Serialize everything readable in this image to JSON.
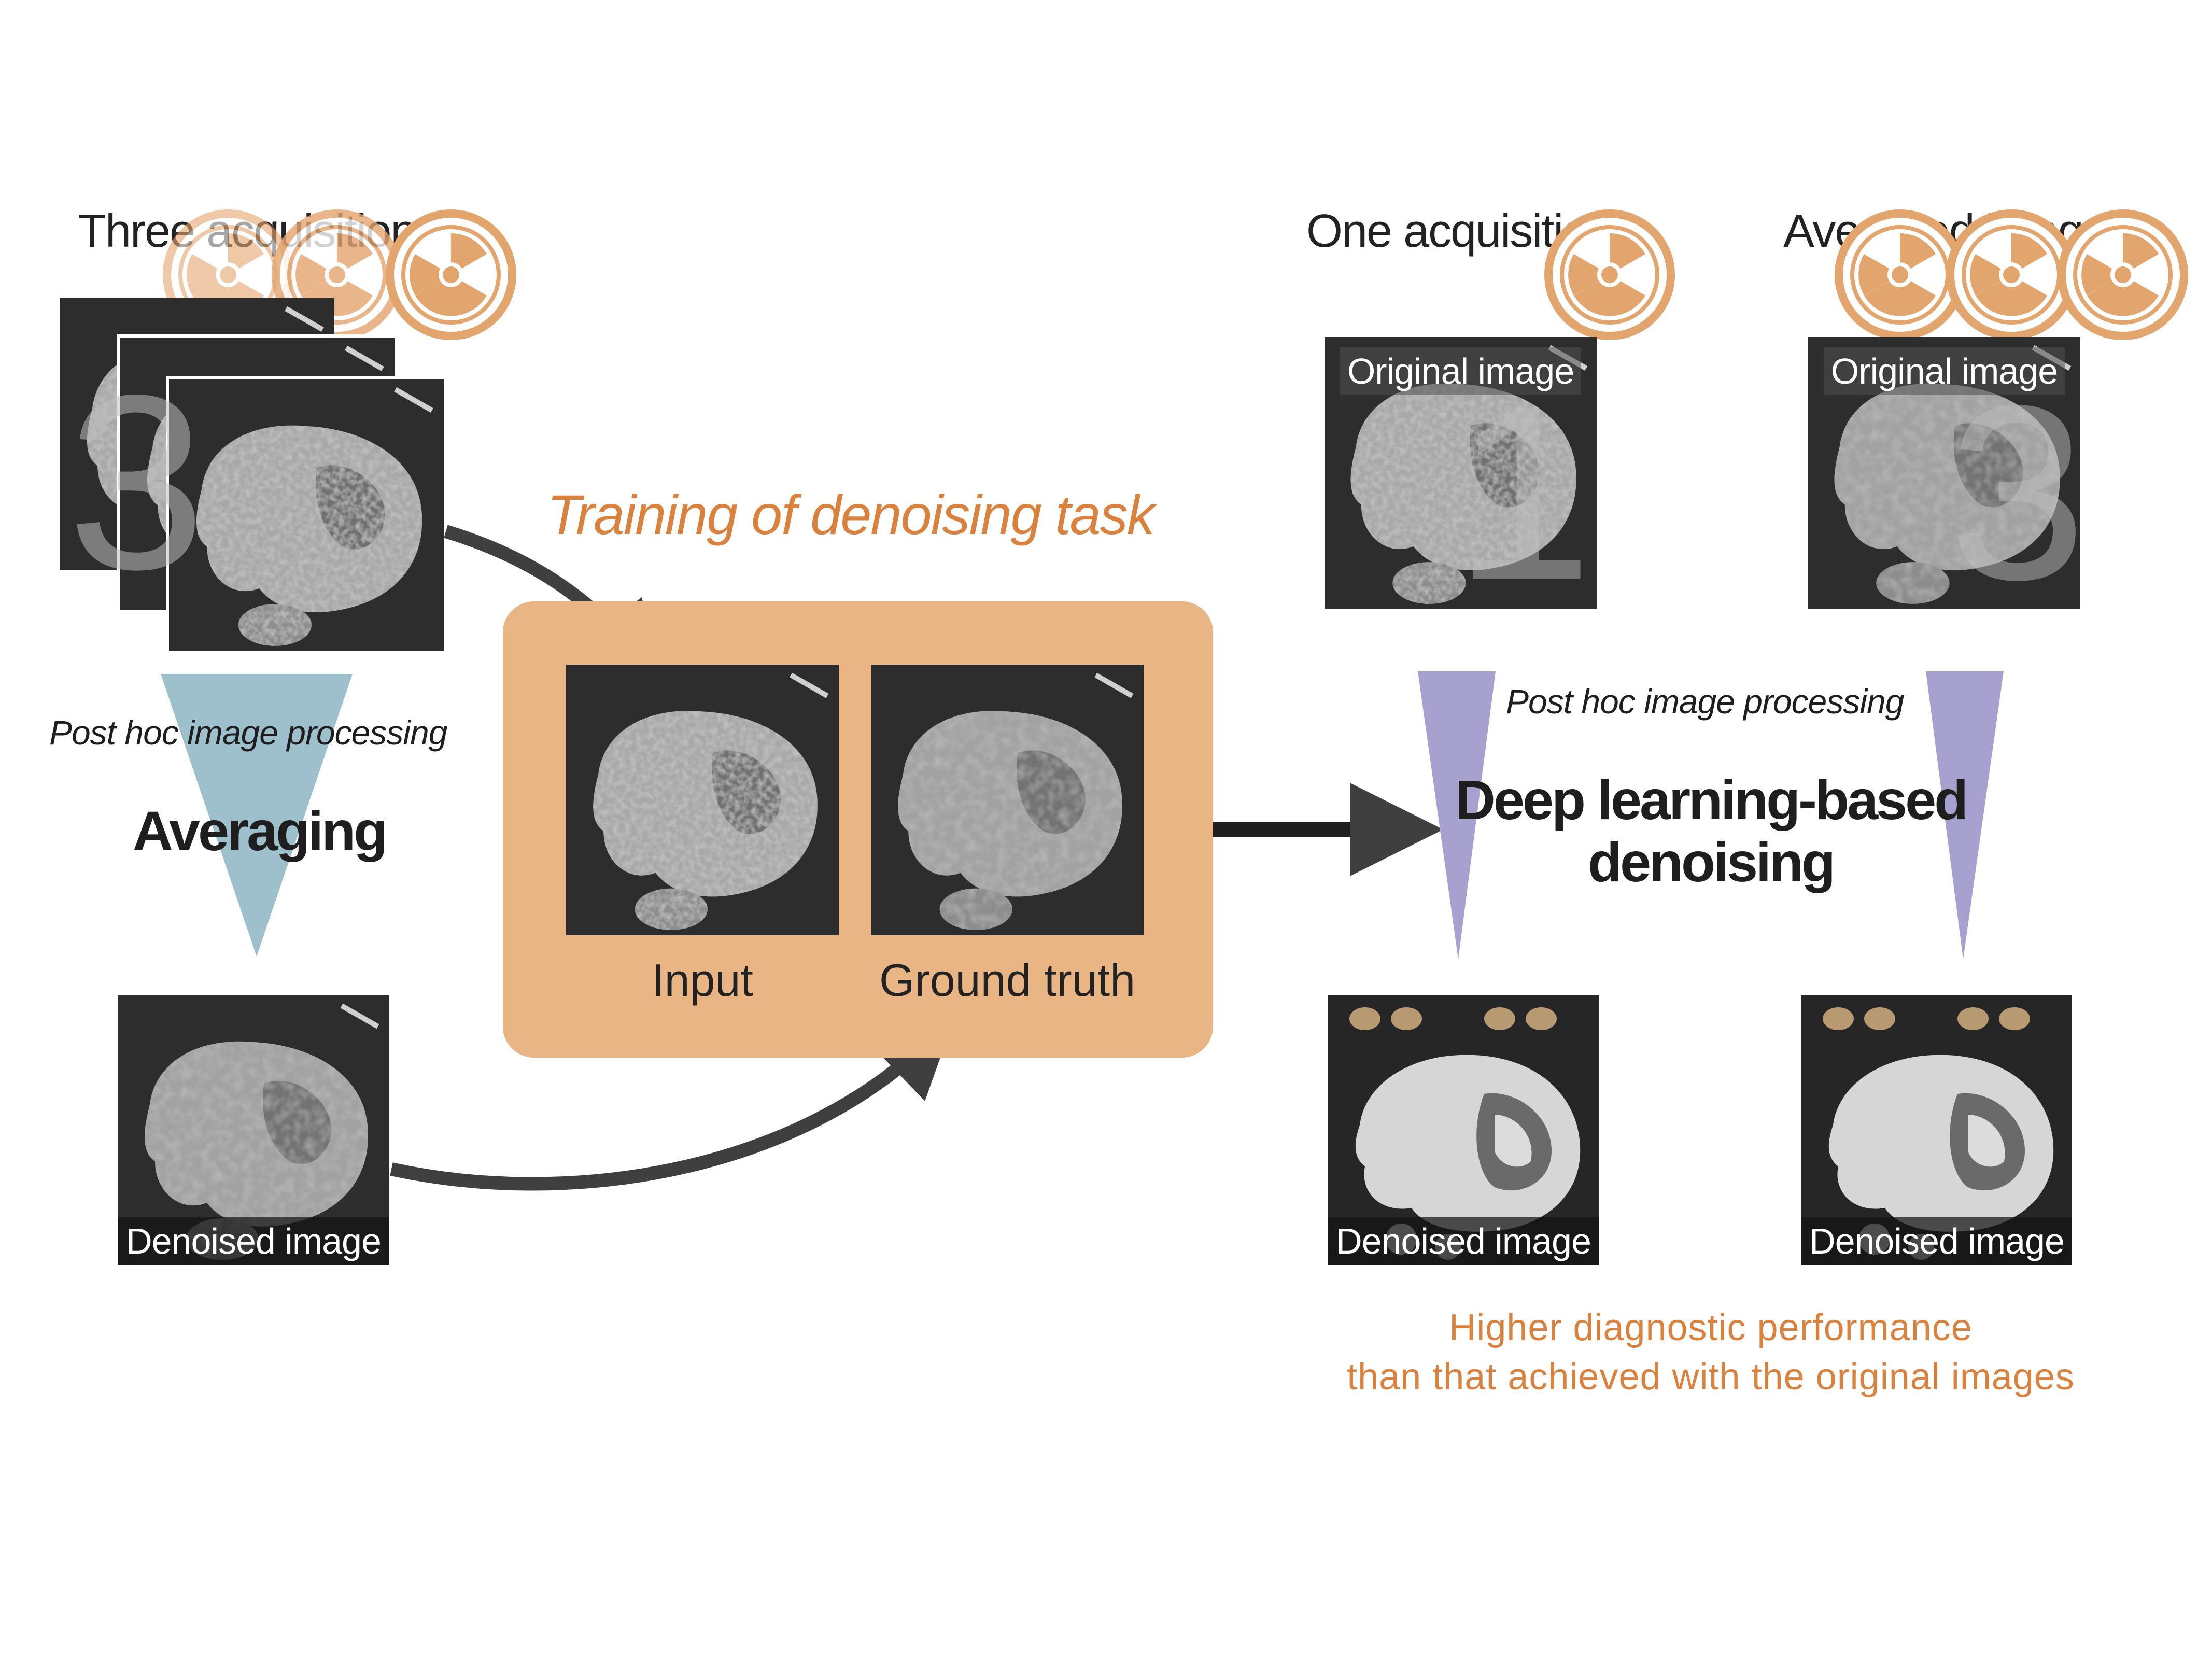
{
  "left": {
    "three_acquisitions": "Three acquisitions",
    "post_hoc": "Post hoc image processing",
    "averaging": "Averaging",
    "denoised_caption": "Denoised image"
  },
  "center": {
    "training_title": "Training of denoising task",
    "input_label": "Input",
    "ground_truth_label": "Ground truth"
  },
  "right": {
    "one_acquisition": "One acquisition",
    "averaged_image": "Averaged image",
    "original_caption_1": "Original image",
    "original_caption_2": "Original image",
    "post_hoc": "Post hoc image processing",
    "dl_line1": "Deep learning-based",
    "dl_line2": "denoising",
    "denoised_caption_1": "Denoised image",
    "denoised_caption_2": "Denoised image",
    "result_line1": "Higher diagnostic performance",
    "result_line2": "than that achieved with the original images"
  },
  "overlay_numbers": {
    "three": "3",
    "one": "1",
    "avg": "3"
  },
  "colors": {
    "accent_orange": "#d9813d",
    "training_box": "#e9b585",
    "radiation_fill": "#e3a56e",
    "triangle_blue": "#9ebfcc",
    "triangle_purple": "#a6a1cf",
    "arrow_dark": "#3f3f3f"
  },
  "icons": [
    "radiation-icon"
  ]
}
